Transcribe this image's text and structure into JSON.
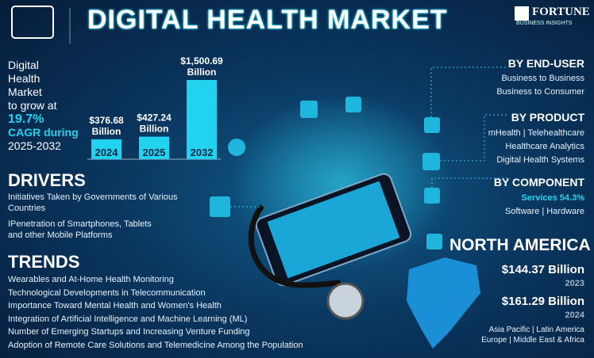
{
  "header": {
    "title": "DIGITAL HEALTH MARKET",
    "brand": "FORTUNE",
    "brand_sub": "BUSINESS INSIGHTS"
  },
  "intro": {
    "lines": [
      "Digital",
      "Health",
      "Market",
      "to grow at"
    ],
    "cagr": "19.7%",
    "cagr_text": "CAGR during",
    "period": "2025-2032"
  },
  "chart_data": {
    "type": "bar",
    "categories": [
      "2024",
      "2025",
      "2032"
    ],
    "values": [
      376.68,
      427.24,
      1500.69
    ],
    "value_labels": [
      "$376.68",
      "$427.24",
      "$1,500.69"
    ],
    "unit": "Billion",
    "color": "#22d3f0"
  },
  "drivers": {
    "title": "DRIVERS",
    "items": [
      "Initiatives Taken by Governments of Various Countries",
      "IPenetration of Smartphones, Tablets and other Mobile Platforms"
    ]
  },
  "trends": {
    "title": "TRENDS",
    "items": [
      "Wearables and At-Home Health Monitoring",
      "Technological Developments in Telecommunication",
      "Importance Toward Mental Health and Women's Health",
      "Integration of Artificial Intelligence and Machine Learning (ML)",
      "Number of Emerging Startups and Increasing Venture Funding",
      "Adoption of Remote Care Solutions and Telemedicine Among the Population"
    ]
  },
  "segments": {
    "end_user": {
      "title": "BY END-USER",
      "lines": [
        "Business to Business",
        "Business to Consumer"
      ]
    },
    "product": {
      "title": "BY PRODUCT",
      "lines": [
        "mHealth | Telehealthcare",
        "Healthcare Analytics",
        "Digital Health Systems"
      ]
    },
    "component": {
      "title": "BY COMPONENT",
      "highlight": "Services 54.3%",
      "lines": [
        "Software | Hardware"
      ]
    }
  },
  "region": {
    "title": "NORTH AMERICA",
    "stats": [
      {
        "value": "$144.37 Billion",
        "year": "2023"
      },
      {
        "value": "$161.29 Billion",
        "year": "2024"
      }
    ],
    "others": [
      "Asia Pacific | Latin America",
      "Europe | Middle East & Africa"
    ]
  }
}
